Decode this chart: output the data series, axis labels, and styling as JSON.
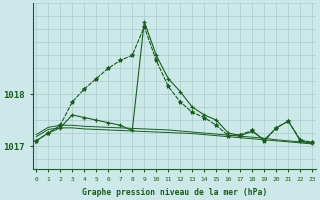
{
  "background_color": "#cce8e8",
  "plot_bg_color": "#cce8e8",
  "grid_color": "#aacccc",
  "line_color": "#1a5c20",
  "xlabel": "Graphe pression niveau de la mer (hPa)",
  "ytick_vals": [
    1017,
    1018
  ],
  "ytick_labels": [
    "1017",
    "1018"
  ],
  "xlim": [
    -0.3,
    23.3
  ],
  "ylim": [
    1016.55,
    1019.75
  ],
  "hours": [
    0,
    1,
    2,
    3,
    4,
    5,
    6,
    7,
    8,
    9,
    10,
    11,
    12,
    13,
    14,
    15,
    16,
    17,
    18,
    19,
    20,
    21,
    22,
    23
  ],
  "line_sharp": [
    1017.1,
    1017.25,
    1017.35,
    1017.6,
    1017.55,
    1017.5,
    1017.45,
    1017.4,
    1017.3,
    1019.4,
    1018.75,
    1018.3,
    1018.05,
    1017.75,
    1017.6,
    1017.5,
    1017.25,
    1017.2,
    1017.28,
    1017.12,
    1017.35,
    1017.48,
    1017.1,
    1017.05
  ],
  "line_smooth": [
    1017.1,
    1017.25,
    1017.4,
    1017.85,
    1018.1,
    1018.3,
    1018.5,
    1018.65,
    1018.75,
    1019.3,
    1018.65,
    1018.15,
    1017.85,
    1017.65,
    1017.55,
    1017.4,
    1017.2,
    1017.22,
    1017.3,
    1017.1,
    1017.35,
    1017.48,
    1017.12,
    1017.07
  ],
  "line_flat1": [
    1017.18,
    1017.32,
    1017.35,
    1017.35,
    1017.33,
    1017.32,
    1017.31,
    1017.3,
    1017.29,
    1017.28,
    1017.27,
    1017.26,
    1017.25,
    1017.24,
    1017.22,
    1017.2,
    1017.18,
    1017.16,
    1017.14,
    1017.12,
    1017.1,
    1017.08,
    1017.06,
    1017.04
  ],
  "line_flat2": [
    1017.22,
    1017.36,
    1017.4,
    1017.4,
    1017.38,
    1017.37,
    1017.36,
    1017.35,
    1017.34,
    1017.33,
    1017.32,
    1017.31,
    1017.29,
    1017.27,
    1017.25,
    1017.23,
    1017.21,
    1017.19,
    1017.17,
    1017.15,
    1017.12,
    1017.1,
    1017.08,
    1017.06
  ]
}
